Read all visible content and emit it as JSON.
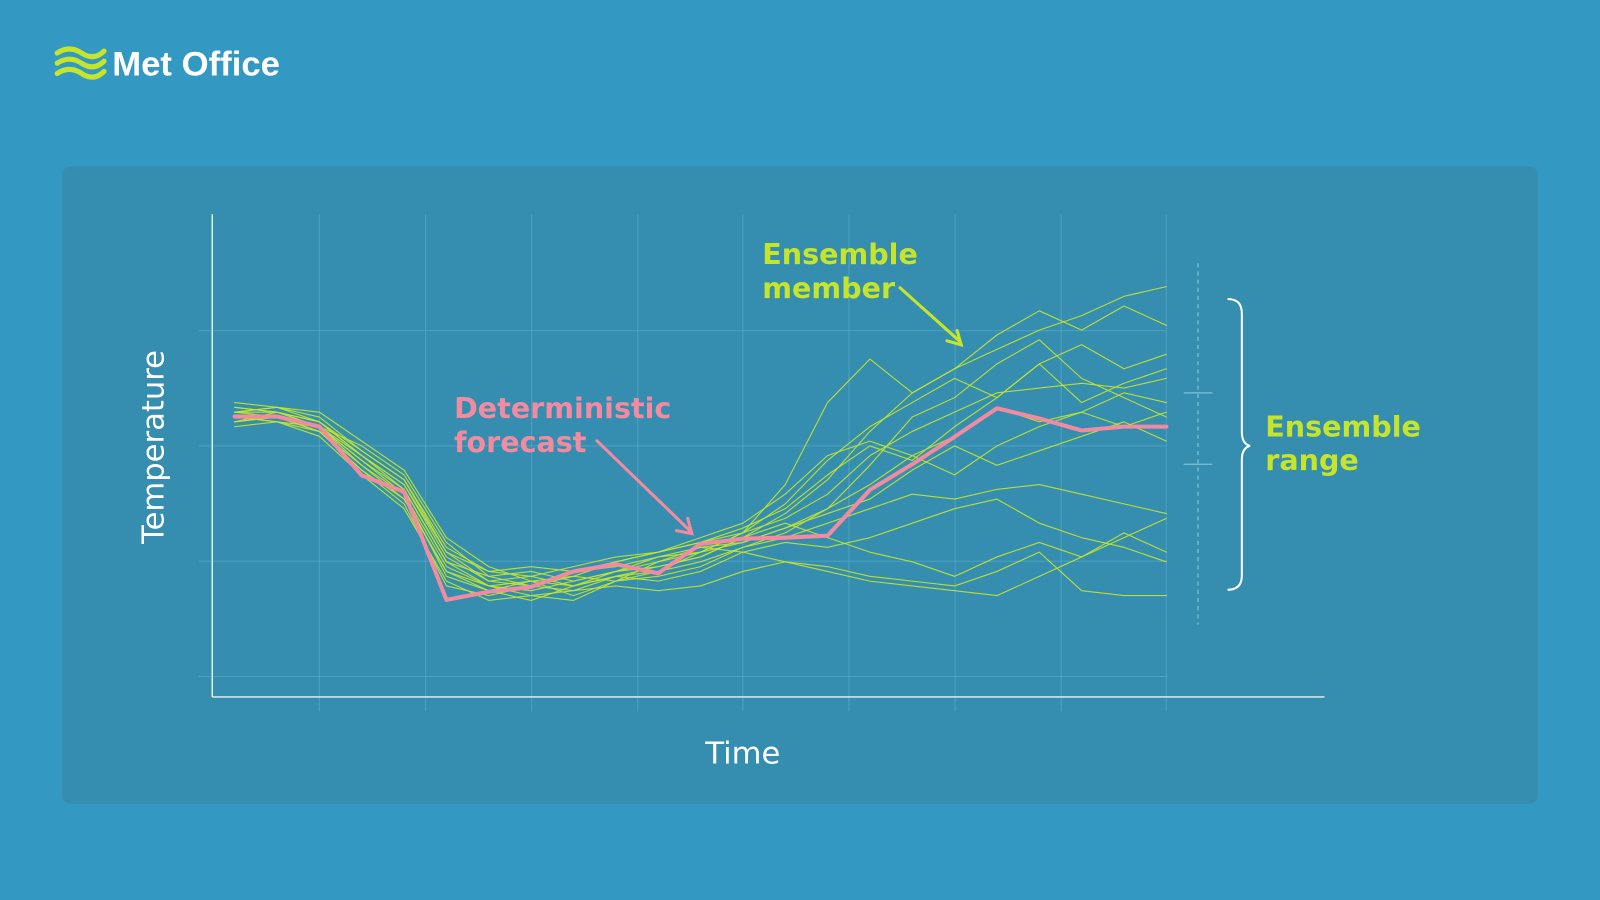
{
  "brand": "Met Office",
  "chart_data": {
    "type": "line",
    "x_label": "Time",
    "y_label": "Temperature",
    "categories": [
      null,
      null,
      null,
      null,
      null,
      null,
      null,
      null,
      null,
      null,
      null,
      null,
      null,
      null,
      null,
      null,
      null,
      null,
      null,
      null,
      null,
      null,
      null
    ],
    "ylim": [
      0,
      10
    ],
    "annotations": [
      {
        "lines": [
          "Ensemble",
          "member"
        ],
        "color": "#c6e52a"
      },
      {
        "lines": [
          "Deterministic",
          "forecast"
        ],
        "color": "#f28ba0"
      },
      {
        "lines": [
          "Ensemble",
          "range"
        ],
        "color": "#c6e52a"
      }
    ],
    "series": [
      {
        "color": "#c6e52a",
        "values": [
          5.9,
          5.9,
          5.7,
          5.0,
          4.4,
          3.0,
          2.4,
          2.3,
          2.2,
          2.5,
          2.7,
          2.9,
          3.3,
          3.8,
          4.5,
          5.5,
          6.3,
          6.8,
          7.2,
          7.6,
          7.9,
          8.3,
          8.5
        ]
      },
      {
        "color": "#c6e52a",
        "values": [
          5.8,
          5.8,
          5.5,
          4.8,
          4.1,
          2.6,
          2.2,
          2.4,
          2.3,
          2.5,
          2.6,
          3.0,
          3.4,
          4.0,
          4.9,
          5.6,
          6.1,
          6.6,
          6.2,
          6.9,
          7.3,
          6.8,
          7.1
        ]
      },
      {
        "color": "#c6e52a",
        "values": [
          6.0,
          5.9,
          5.6,
          4.9,
          4.3,
          2.8,
          2.3,
          2.1,
          2.0,
          2.4,
          2.8,
          3.1,
          3.2,
          3.5,
          3.9,
          4.8,
          5.8,
          6.2,
          6.9,
          7.4,
          6.6,
          6.2,
          5.8
        ]
      },
      {
        "color": "#c6e52a",
        "values": [
          5.7,
          5.8,
          5.6,
          5.2,
          4.6,
          3.2,
          2.5,
          2.6,
          2.4,
          2.6,
          2.9,
          3.1,
          3.0,
          2.8,
          2.6,
          2.4,
          2.3,
          2.2,
          2.1,
          2.5,
          2.9,
          3.3,
          3.7
        ]
      },
      {
        "color": "#c6e52a",
        "values": [
          5.9,
          6.0,
          5.8,
          5.1,
          4.5,
          3.1,
          2.6,
          2.5,
          2.7,
          2.9,
          3.0,
          3.2,
          3.4,
          3.7,
          4.2,
          5.0,
          5.5,
          5.9,
          6.3,
          6.4,
          6.5,
          6.4,
          6.6
        ]
      },
      {
        "color": "#c6e52a",
        "values": [
          5.6,
          5.7,
          5.4,
          4.6,
          3.9,
          2.4,
          2.0,
          2.1,
          2.2,
          2.3,
          2.2,
          2.3,
          2.6,
          2.8,
          2.7,
          2.5,
          2.4,
          2.3,
          2.6,
          3.0,
          2.2,
          2.1,
          2.1
        ]
      },
      {
        "color": "#c6e52a",
        "values": [
          6.1,
          6.0,
          5.9,
          5.3,
          4.7,
          3.3,
          2.7,
          2.4,
          2.5,
          2.8,
          3.0,
          3.3,
          3.6,
          4.2,
          5.0,
          5.3,
          5.0,
          5.4,
          6.0,
          5.7,
          5.9,
          6.3,
          6.1
        ]
      },
      {
        "color": "#c6e52a",
        "values": [
          5.8,
          5.7,
          5.5,
          4.7,
          4.0,
          2.3,
          2.1,
          2.3,
          2.5,
          2.4,
          2.5,
          2.7,
          3.1,
          3.3,
          3.6,
          3.9,
          4.2,
          4.1,
          4.3,
          4.4,
          4.2,
          4.0,
          3.8
        ]
      },
      {
        "color": "#c6e52a",
        "values": [
          5.9,
          5.8,
          5.6,
          4.9,
          4.2,
          2.7,
          2.3,
          2.2,
          2.4,
          2.6,
          2.7,
          2.9,
          3.3,
          3.6,
          3.3,
          3.0,
          2.8,
          2.5,
          2.9,
          3.2,
          2.9,
          3.4,
          3.0
        ]
      },
      {
        "color": "#c6e52a",
        "values": [
          5.7,
          5.9,
          5.7,
          5.0,
          4.4,
          2.9,
          2.4,
          2.5,
          2.3,
          2.6,
          2.8,
          3.0,
          3.4,
          4.4,
          6.1,
          7.0,
          6.3,
          6.8,
          7.5,
          8.0,
          7.6,
          8.1,
          7.7
        ]
      },
      {
        "color": "#c6e52a",
        "values": [
          6.0,
          5.9,
          5.6,
          5.0,
          4.3,
          2.8,
          2.5,
          2.3,
          2.6,
          2.7,
          2.9,
          3.0,
          3.2,
          3.5,
          3.8,
          4.1,
          4.7,
          5.2,
          4.8,
          5.1,
          5.4,
          5.7,
          5.3
        ]
      },
      {
        "color": "#c6e52a",
        "values": [
          5.8,
          5.7,
          5.6,
          4.8,
          4.2,
          2.5,
          2.2,
          2.0,
          2.3,
          2.5,
          2.4,
          2.6,
          3.0,
          3.2,
          3.1,
          3.3,
          3.6,
          3.9,
          4.1,
          3.6,
          3.3,
          3.1,
          2.8
        ]
      },
      {
        "color": "#c6e52a",
        "values": [
          5.9,
          6.0,
          5.7,
          5.1,
          4.5,
          3.0,
          2.6,
          2.7,
          2.6,
          2.8,
          3.0,
          3.2,
          3.5,
          3.9,
          4.6,
          5.2,
          4.9,
          5.6,
          6.2,
          6.9,
          6.1,
          6.5,
          6.8
        ]
      },
      {
        "color": "#c6e52a",
        "values": [
          5.7,
          5.8,
          5.5,
          4.7,
          4.1,
          2.6,
          2.3,
          2.4,
          2.1,
          2.4,
          2.6,
          2.8,
          3.1,
          3.4,
          3.9,
          4.4,
          5.0,
          4.6,
          5.2,
          5.6,
          5.9,
          5.6,
          5.9
        ]
      },
      {
        "color": "#f28ba0",
        "values": [
          5.81,
          5.81,
          5.6,
          4.59,
          4.25,
          2.01,
          2.18,
          2.28,
          2.6,
          2.75,
          2.56,
          3.17,
          3.28,
          3.3,
          3.34,
          4.29,
          4.82,
          5.39,
          5.98,
          5.77,
          5.52,
          5.6,
          5.6
        ]
      }
    ]
  }
}
